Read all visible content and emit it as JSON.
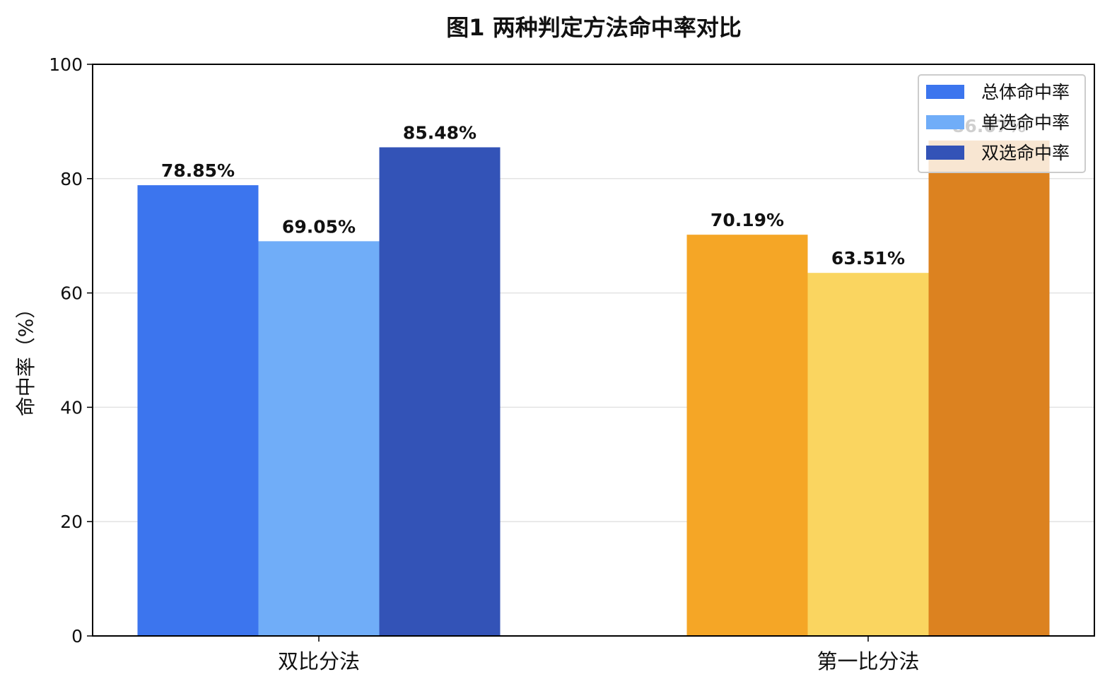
{
  "chart_data": {
    "type": "bar",
    "title": "图1  两种判定方法命中率对比",
    "xlabel": "",
    "ylabel": "命中率（%）",
    "ylim": [
      0,
      100
    ],
    "yticks": [
      0,
      20,
      40,
      60,
      80,
      100
    ],
    "grid": true,
    "legend_position": "top-right",
    "categories": [
      "双比分法",
      "第一比分法"
    ],
    "series": [
      {
        "name": "总体命中率",
        "values": [
          78.85,
          70.19
        ],
        "data_labels": [
          "78.85%",
          "70.19%"
        ],
        "colors": [
          "#3c75ee",
          "#f5a626"
        ]
      },
      {
        "name": "单选命中率",
        "values": [
          69.05,
          63.51
        ],
        "data_labels": [
          "69.05%",
          "63.51%"
        ],
        "colors": [
          "#70adf8",
          "#fad560"
        ]
      },
      {
        "name": "双选命中率",
        "values": [
          85.48,
          86.67
        ],
        "data_labels": [
          "85.48%",
          "86.67%"
        ],
        "colors": [
          "#3353b7",
          "#dc8220"
        ]
      }
    ]
  }
}
